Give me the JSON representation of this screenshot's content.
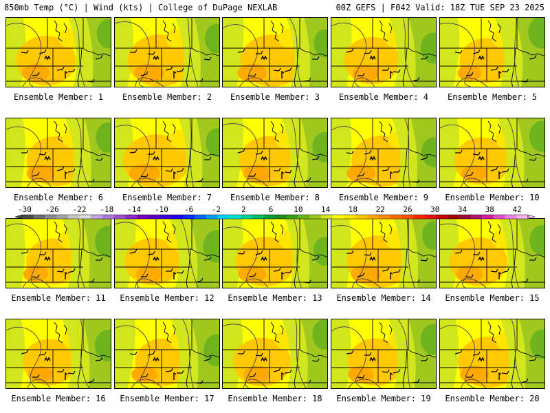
{
  "header": {
    "left": "850mb Temp (°C) | Wind (kts) | College of DuPage NEXLAB",
    "right": "00Z GEFS | F042 Valid: 18Z TUE SEP 23 2025"
  },
  "members": [
    {
      "label": "Ensemble Member: 1",
      "green": 0.3,
      "orange": 0.45
    },
    {
      "label": "Ensemble Member: 2",
      "green": 0.35,
      "orange": 0.55
    },
    {
      "label": "Ensemble Member: 3",
      "green": 0.25,
      "orange": 0.55
    },
    {
      "label": "Ensemble Member: 4",
      "green": 0.45,
      "orange": 0.35
    },
    {
      "label": "Ensemble Member: 5",
      "green": 0.55,
      "orange": 0.25
    },
    {
      "label": "Ensemble Member: 6",
      "green": 0.4,
      "orange": 0.45
    },
    {
      "label": "Ensemble Member: 7",
      "green": 0.25,
      "orange": 0.6
    },
    {
      "label": "Ensemble Member: 8",
      "green": 0.4,
      "orange": 0.45
    },
    {
      "label": "Ensemble Member: 9",
      "green": 0.35,
      "orange": 0.5
    },
    {
      "label": "Ensemble Member: 10",
      "green": 0.45,
      "orange": 0.35
    },
    {
      "label": "Ensemble Member: 11",
      "green": 0.5,
      "orange": 0.3
    },
    {
      "label": "Ensemble Member: 12",
      "green": 0.55,
      "orange": 0.35
    },
    {
      "label": "Ensemble Member: 13",
      "green": 0.3,
      "orange": 0.45
    },
    {
      "label": "Ensemble Member: 14",
      "green": 0.3,
      "orange": 0.55
    },
    {
      "label": "Ensemble Member: 15",
      "green": 0.4,
      "orange": 0.4
    },
    {
      "label": "Ensemble Member: 16",
      "green": 0.5,
      "orange": 0.3
    },
    {
      "label": "Ensemble Member: 17",
      "green": 0.5,
      "orange": 0.35
    },
    {
      "label": "Ensemble Member: 18",
      "green": 0.4,
      "orange": 0.4
    },
    {
      "label": "Ensemble Member: 19",
      "green": 0.45,
      "orange": 0.35
    },
    {
      "label": "Ensemble Member: 20",
      "green": 0.35,
      "orange": 0.5
    }
  ],
  "colorbar": {
    "ticks": [
      "-30",
      "-26",
      "-22",
      "-18",
      "-14",
      "-10",
      "-6",
      "-2",
      "2",
      "6",
      "10",
      "14",
      "18",
      "22",
      "26",
      "30",
      "34",
      "38",
      "42"
    ],
    "colors": [
      "#4a4a4a",
      "#6e6e6e",
      "#8c8c8c",
      "#a6a6a6",
      "#c8c8c8",
      "#dcdcdc",
      "#c8a0e6",
      "#b478dc",
      "#a050d2",
      "#8c28c8",
      "#7800be",
      "#5a00c8",
      "#3c00dc",
      "#1e00f0",
      "#0028ff",
      "#0064ff",
      "#00a0ff",
      "#00d2ff",
      "#00e6c8",
      "#00d296",
      "#00be64",
      "#00a032",
      "#1e8c1e",
      "#3ca01e",
      "#6eb41e",
      "#a0c81e",
      "#d2e61e",
      "#ffff00",
      "#ffe600",
      "#ffc800",
      "#ffaa00",
      "#ff8c00",
      "#ff6e00",
      "#ff5000",
      "#ff2800",
      "#e61414",
      "#c80000",
      "#a00000",
      "#960a3c",
      "#b4146e",
      "#d21ea0",
      "#e650c8",
      "#f082e6",
      "#f5b4f0"
    ]
  },
  "colors": {
    "yellow": "#ffff00",
    "gold": "#ffe600",
    "orange": "#ffc800",
    "dark_orange": "#ffaa00",
    "light_green": "#d2e61e",
    "green": "#a0c81e",
    "dark_green": "#6eb41e"
  }
}
